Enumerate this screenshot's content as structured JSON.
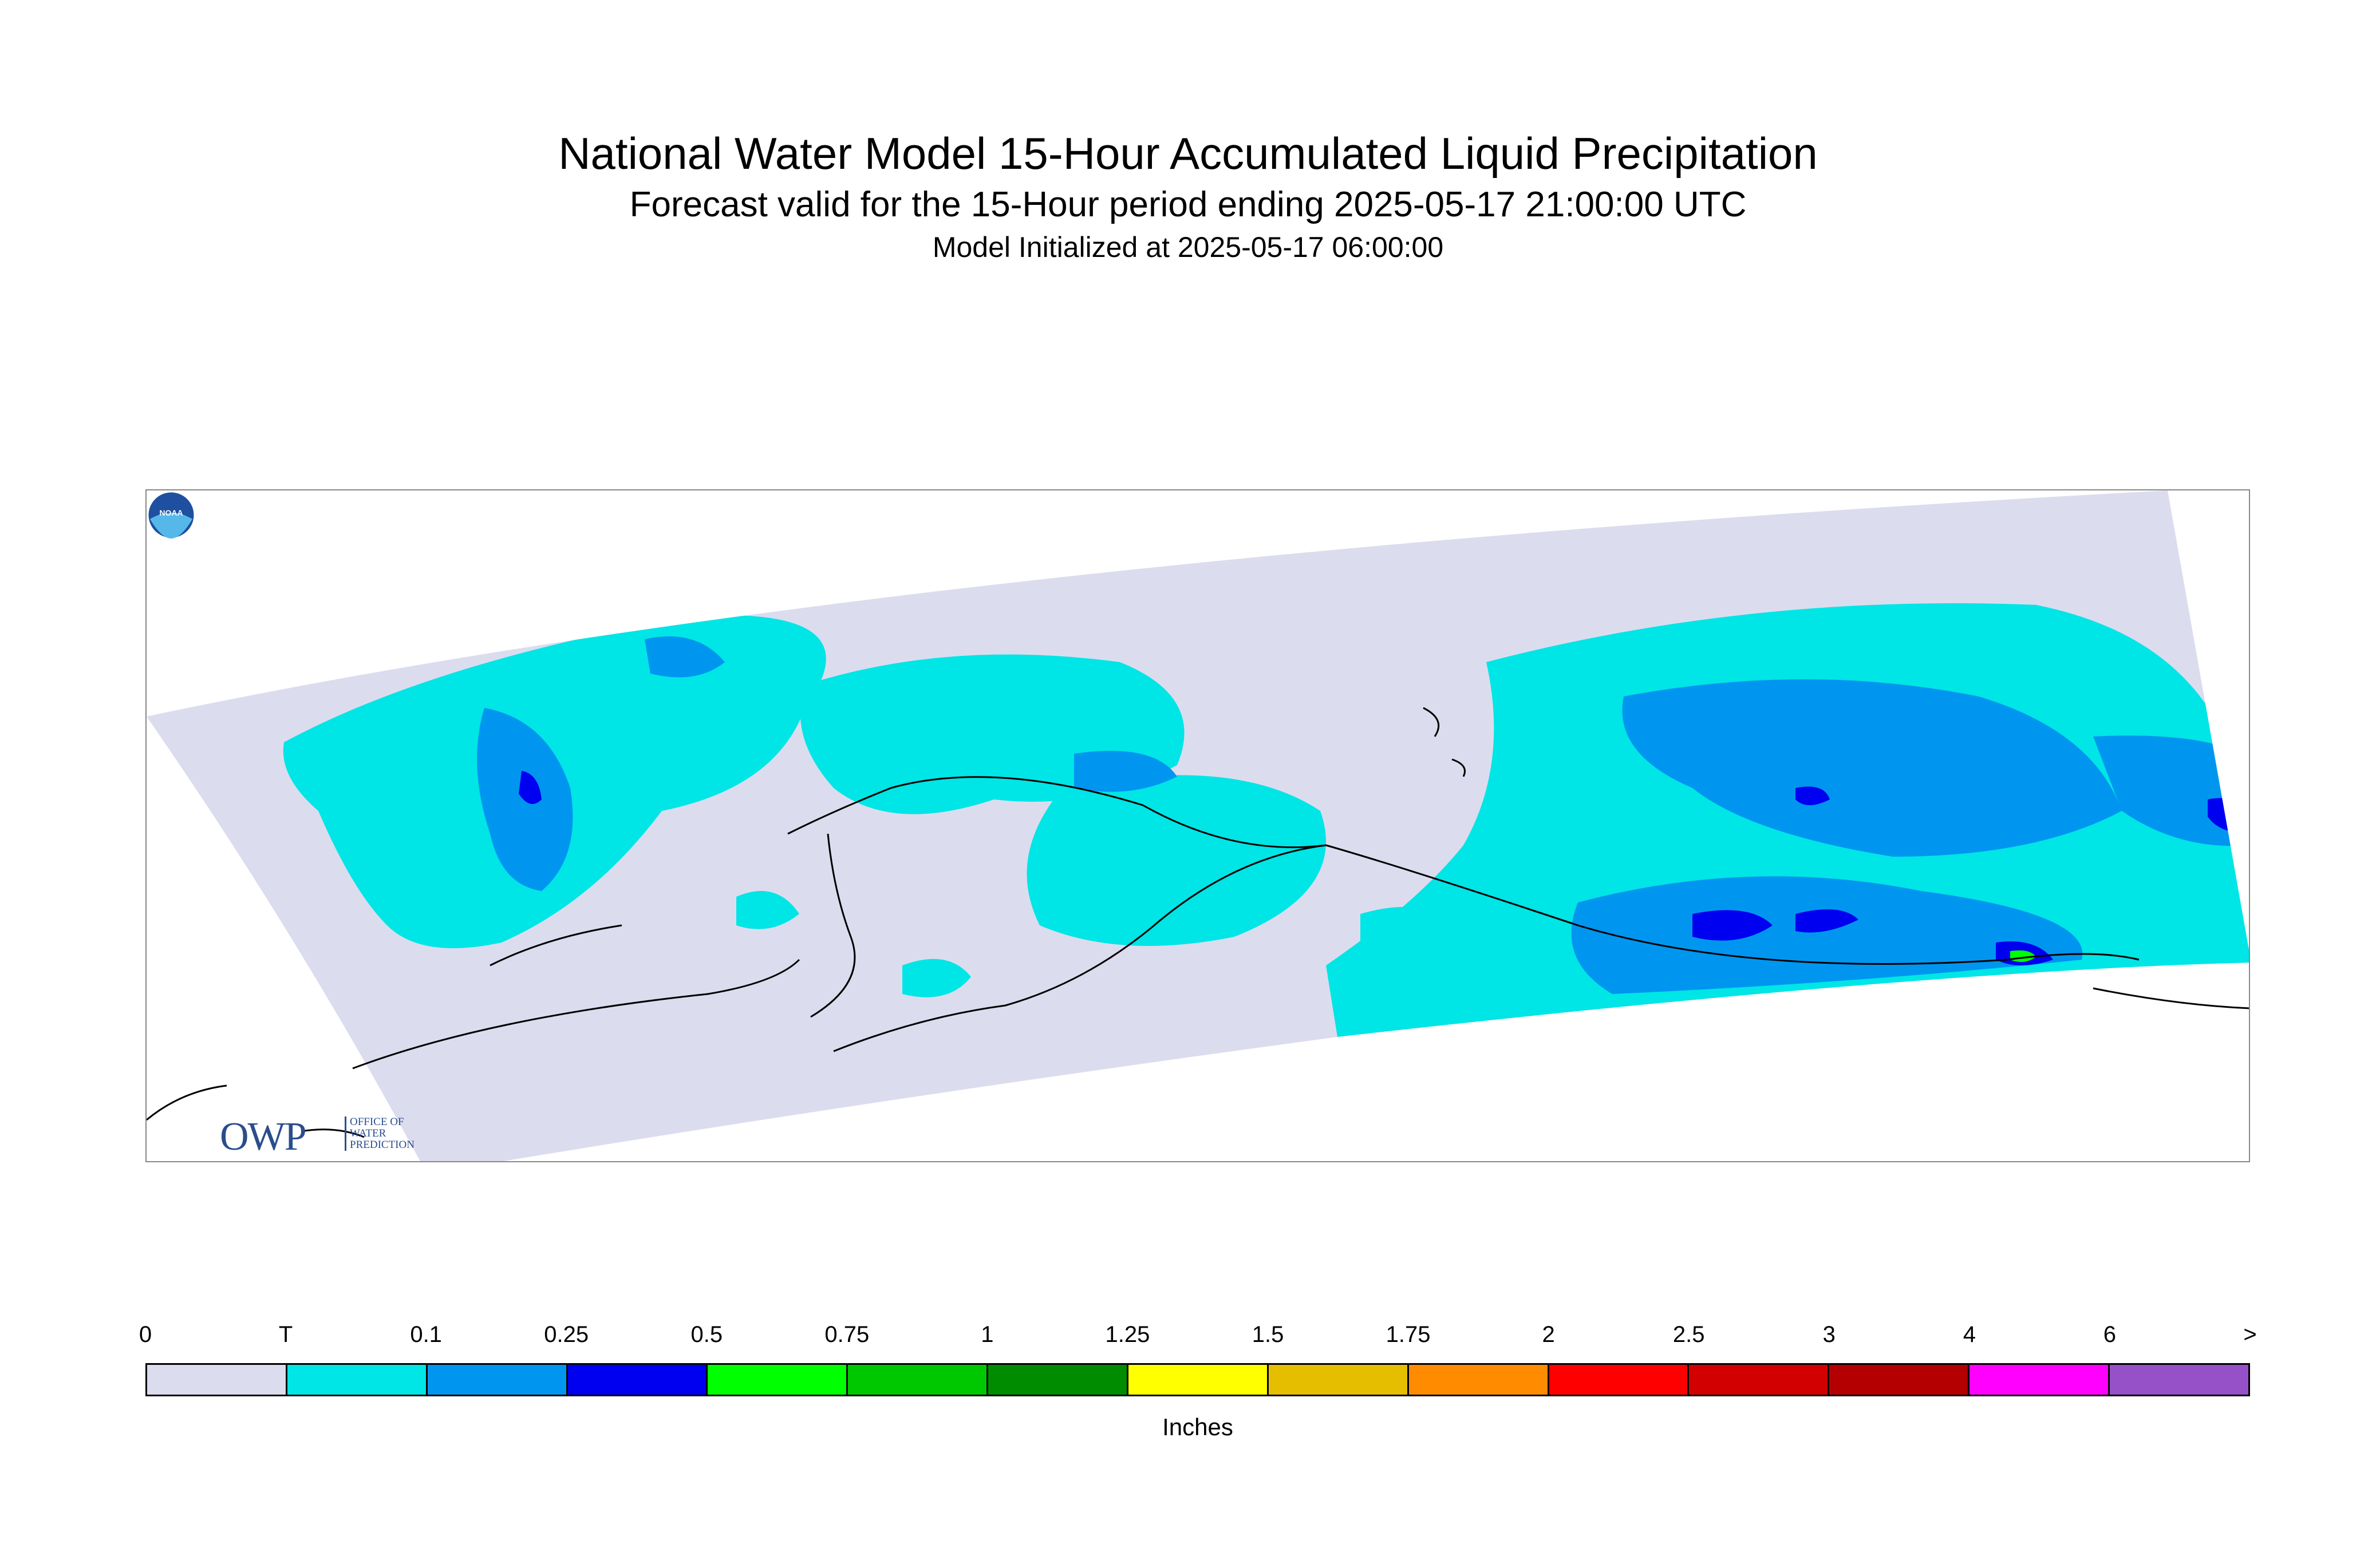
{
  "header": {
    "title": "National Water Model 15-Hour Accumulated Liquid Precipitation",
    "subtitle": "Forecast valid for the 15-Hour period ending 2025-05-17 21:00:00 UTC",
    "init": "Model Initialized at 2025-05-17 06:00:00"
  },
  "logos": {
    "owp_text": "OWP",
    "owp_sub": [
      "OFFICE OF",
      "WATER",
      "PREDICTION"
    ],
    "noaa_text": "NOAA"
  },
  "legend": {
    "unit": "Inches",
    "labels": [
      "0",
      "T",
      "0.1",
      "0.25",
      "0.5",
      "0.75",
      "1",
      "1.25",
      "1.5",
      "1.75",
      "2",
      "2.5",
      "3",
      "4",
      "6",
      ">"
    ],
    "colors": [
      "#dcdcef",
      "#00e5e5",
      "#0096f0",
      "#0000f0",
      "#00ff00",
      "#00c800",
      "#008c00",
      "#ffff00",
      "#e6be00",
      "#ff8c00",
      "#ff0000",
      "#d20000",
      "#b40000",
      "#ff00ff",
      "#9650c8"
    ]
  },
  "map_colors": {
    "zero": "#dcdcef",
    "trace": "#00e5e5",
    "tenth": "#0096f0",
    "quarter": "#0000f0",
    "half": "#00ff00",
    "coast": "#000000"
  }
}
